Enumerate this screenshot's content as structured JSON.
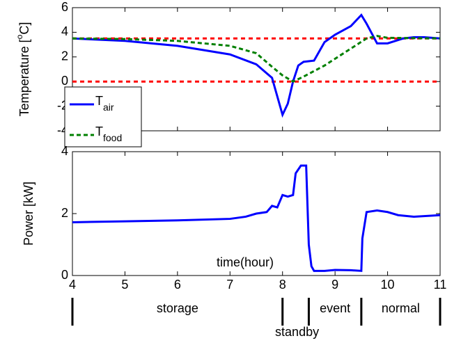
{
  "chart_data": [
    {
      "type": "line",
      "ylabel": "Temperature [",
      "ylabel_sup": "o",
      "ylabel_end": "C]",
      "xlim": [
        4,
        11
      ],
      "xticks": [
        4,
        5,
        6,
        7,
        8,
        9,
        10,
        11
      ],
      "ylim": [
        -4,
        6
      ],
      "yticks": [
        -4,
        -2,
        0,
        2,
        4,
        6
      ],
      "reference_lines": {
        "values": [
          3.5,
          0
        ],
        "color": "#ff0000"
      },
      "series": [
        {
          "name": "T",
          "name_sub": "air",
          "color": "#0000ff",
          "dash": false,
          "x": [
            4,
            5,
            6,
            7,
            7.5,
            7.8,
            8,
            8.1,
            8.2,
            8.3,
            8.4,
            8.6,
            8.8,
            9,
            9.3,
            9.5,
            9.6,
            9.8,
            10,
            10.3,
            10.5,
            10.7,
            11
          ],
          "values": [
            3.5,
            3.3,
            2.9,
            2.2,
            1.4,
            0.3,
            -2.7,
            -1.8,
            0,
            1.3,
            1.6,
            1.7,
            3.2,
            3.8,
            4.5,
            5.4,
            4.7,
            3.1,
            3.1,
            3.5,
            3.6,
            3.6,
            3.5
          ]
        },
        {
          "name": "T",
          "name_sub": "food",
          "color": "#008000",
          "dash": true,
          "x": [
            4,
            5,
            6,
            7,
            7.5,
            7.8,
            8,
            8.2,
            8.4,
            8.8,
            9.2,
            9.6,
            9.8,
            10,
            11
          ],
          "values": [
            3.5,
            3.45,
            3.3,
            2.9,
            2.3,
            1.2,
            0.5,
            0,
            0.4,
            1.3,
            2.4,
            3.5,
            3.7,
            3.55,
            3.5
          ]
        }
      ]
    },
    {
      "type": "line",
      "ylabel": "Power [kW]",
      "xlim": [
        4,
        11
      ],
      "xticks": [
        4,
        5,
        6,
        7,
        8,
        9,
        10,
        11
      ],
      "ylim": [
        0,
        4
      ],
      "yticks": [
        0,
        2,
        4
      ],
      "annotation": "time(hour)",
      "phases": {
        "boundaries": [
          4,
          8,
          8.5,
          9.5,
          11
        ],
        "labels": [
          "storage",
          "standby",
          "event",
          "normal"
        ]
      },
      "series": [
        {
          "name": "Power",
          "color": "#0000ff",
          "x": [
            4,
            5,
            6,
            7,
            7.3,
            7.5,
            7.7,
            7.8,
            7.9,
            8.0,
            8.1,
            8.2,
            8.25,
            8.35,
            8.45,
            8.5,
            8.55,
            8.6,
            8.8,
            9,
            9.3,
            9.5,
            9.52,
            9.6,
            9.8,
            10,
            10.2,
            10.5,
            11
          ],
          "values": [
            1.72,
            1.75,
            1.78,
            1.83,
            1.9,
            2.0,
            2.05,
            2.25,
            2.2,
            2.6,
            2.55,
            2.6,
            3.3,
            3.55,
            3.55,
            1.0,
            0.3,
            0.15,
            0.15,
            0.18,
            0.17,
            0.15,
            1.2,
            2.05,
            2.1,
            2.05,
            1.95,
            1.9,
            1.95
          ]
        }
      ]
    }
  ]
}
